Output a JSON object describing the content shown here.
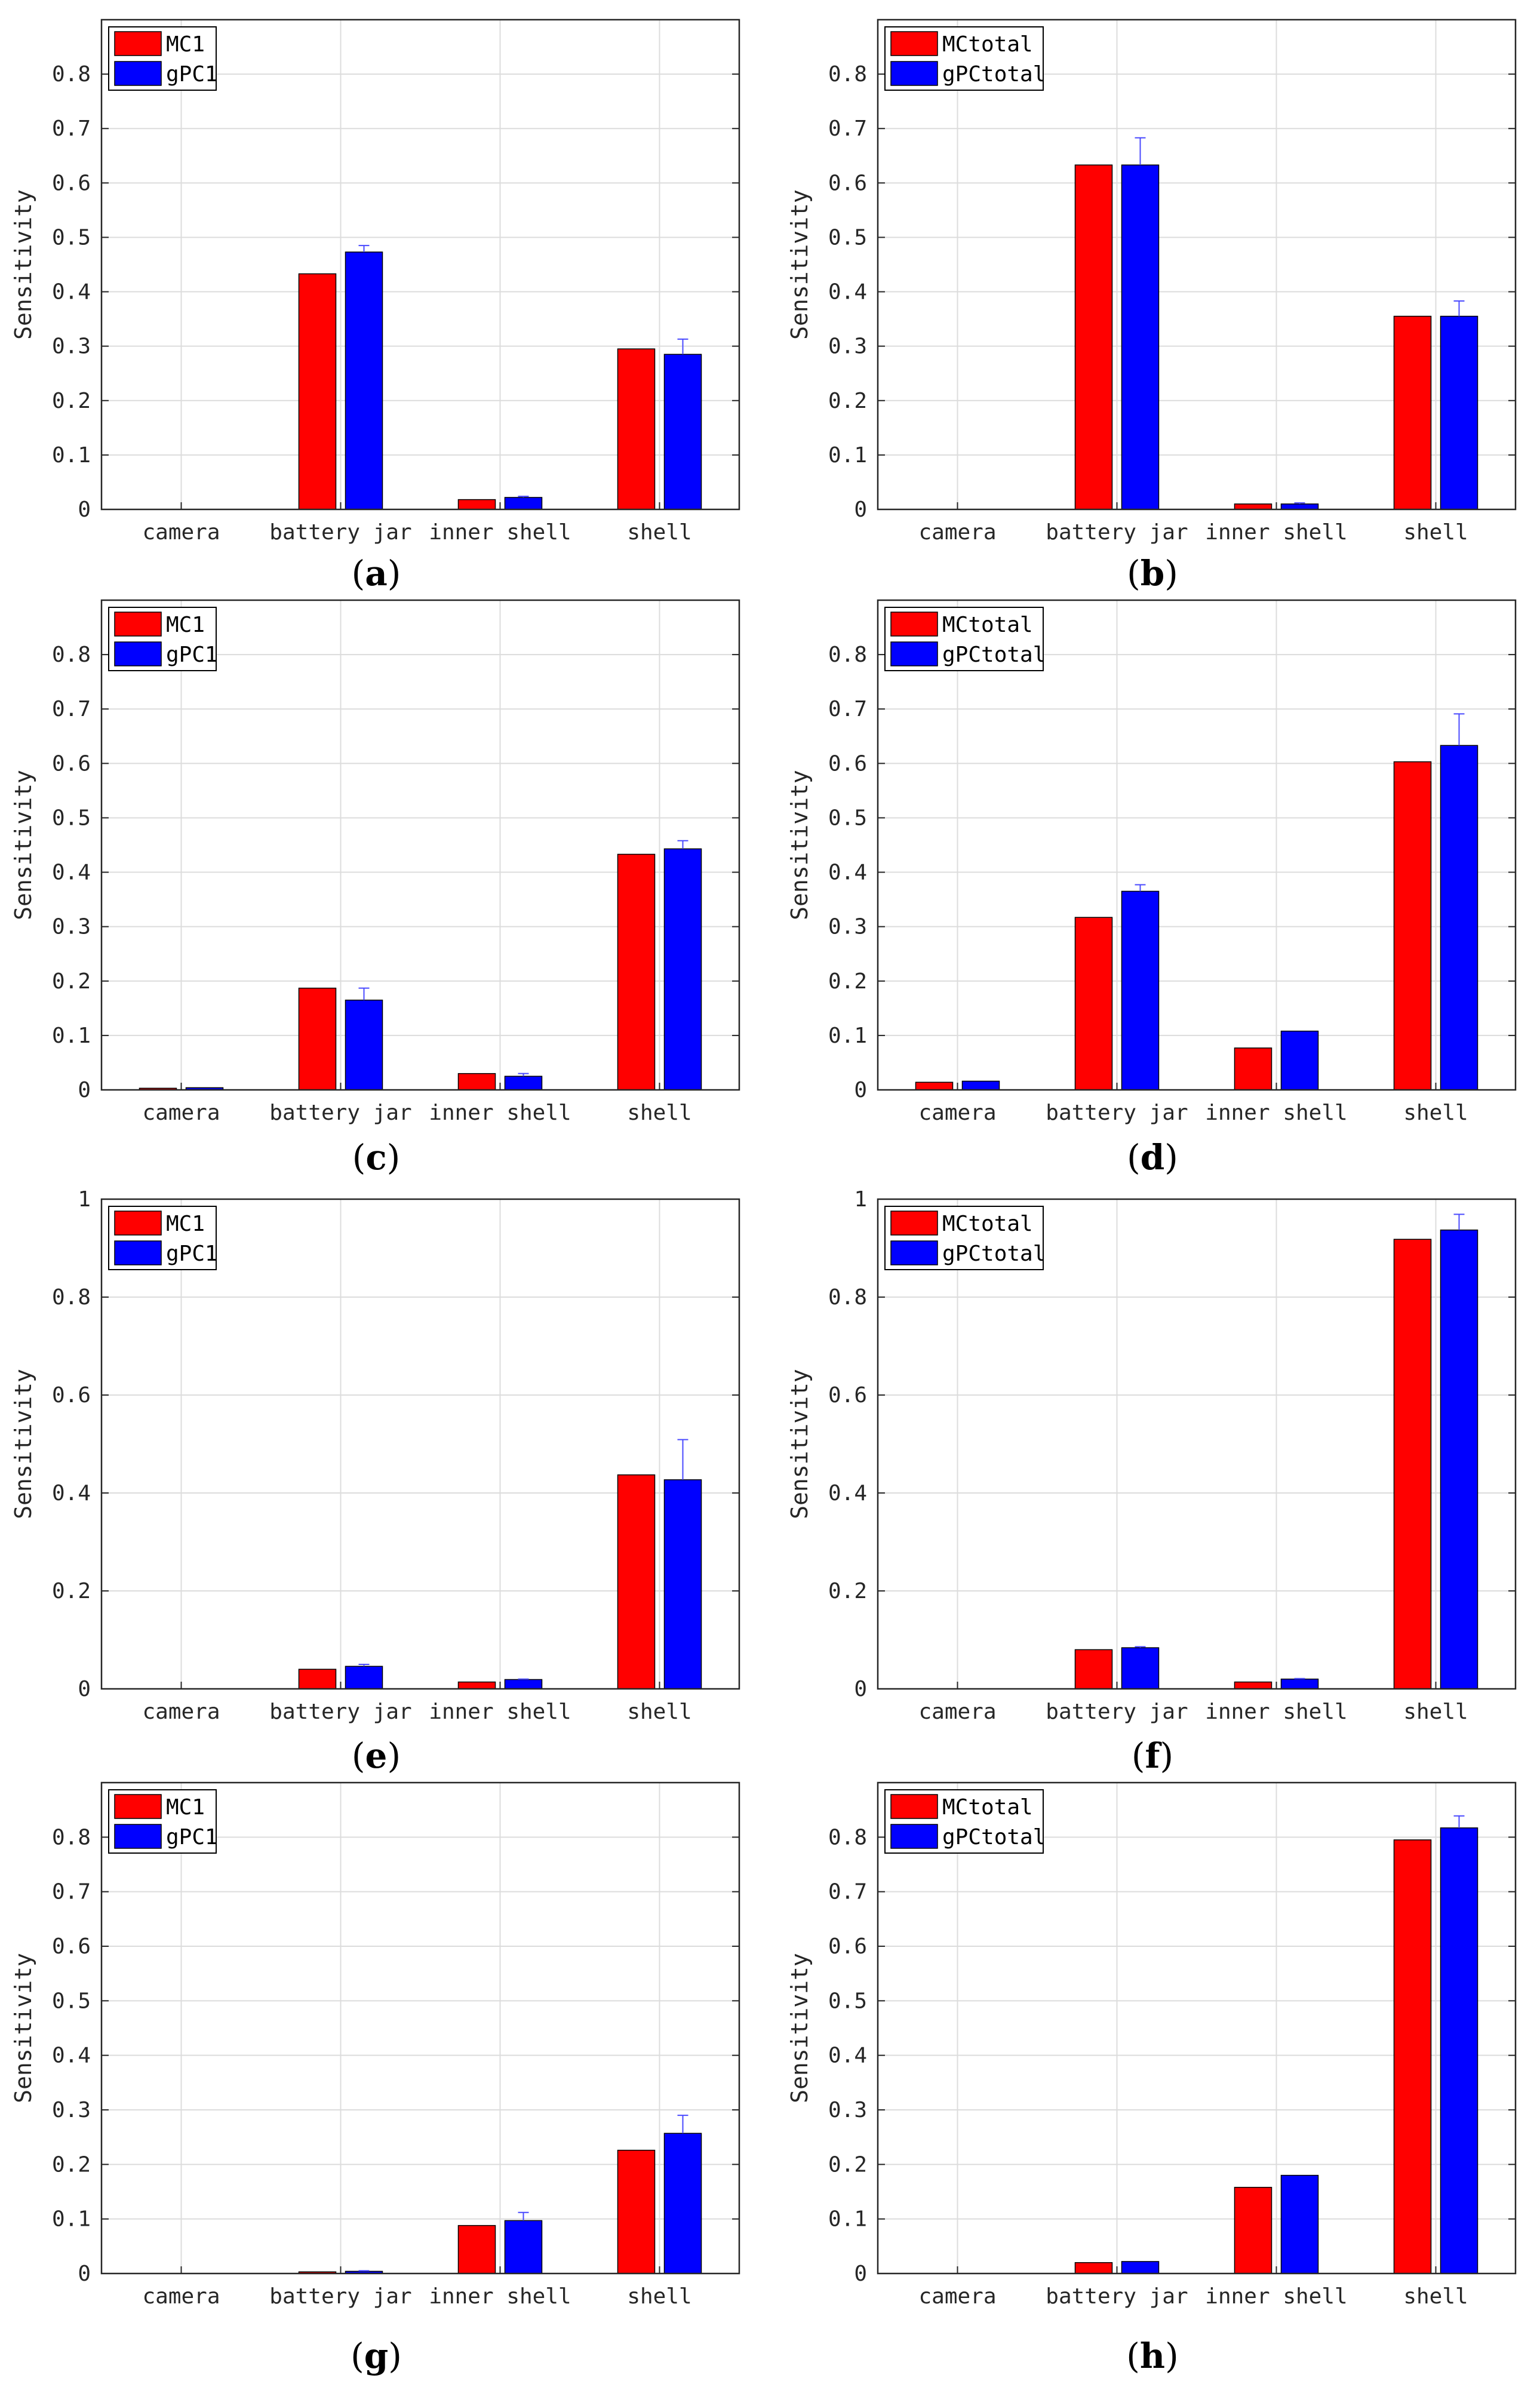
{
  "colors": {
    "mc": "#ff0000",
    "gpc": "#0000ff",
    "grid": "#dcdcdc",
    "axis": "#262626",
    "errorbar": "#4a4aff"
  },
  "chart_data": [
    {
      "panel": "a",
      "type": "bar",
      "ylabel": "Sensitivity",
      "ylim": [
        0,
        0.9
      ],
      "yticks": [
        0,
        0.1,
        0.2,
        0.3,
        0.4,
        0.5,
        0.6,
        0.7,
        0.8
      ],
      "ytick_labels": [
        "0",
        "0.1",
        "0.2",
        "0.3",
        "0.4",
        "0.5",
        "0.6",
        "0.7",
        "0.8"
      ],
      "categories": [
        "camera",
        "battery jar",
        "inner shell",
        "shell"
      ],
      "series": [
        {
          "name": "MC1",
          "values": [
            0,
            0.433,
            0.018,
            0.295
          ]
        },
        {
          "name": "gPC1",
          "values": [
            0,
            0.473,
            0.022,
            0.285
          ],
          "errors": [
            0,
            0.012,
            0.002,
            0.028
          ]
        }
      ],
      "legend_loc": "top-left",
      "grid": true
    },
    {
      "panel": "b",
      "type": "bar",
      "ylabel": "Sensitivity",
      "ylim": [
        0,
        0.9
      ],
      "yticks": [
        0,
        0.1,
        0.2,
        0.3,
        0.4,
        0.5,
        0.6,
        0.7,
        0.8
      ],
      "ytick_labels": [
        "0",
        "0.1",
        "0.2",
        "0.3",
        "0.4",
        "0.5",
        "0.6",
        "0.7",
        "0.8"
      ],
      "categories": [
        "camera",
        "battery jar",
        "inner shell",
        "shell"
      ],
      "series": [
        {
          "name": "MCtotal",
          "values": [
            0,
            0.633,
            0.01,
            0.355
          ]
        },
        {
          "name": "gPCtotal",
          "values": [
            0,
            0.633,
            0.01,
            0.355
          ],
          "errors": [
            0,
            0.05,
            0.002,
            0.028
          ]
        }
      ],
      "legend_loc": "top-left",
      "grid": true
    },
    {
      "panel": "c",
      "type": "bar",
      "ylabel": "Sensitivity",
      "ylim": [
        0,
        0.9
      ],
      "yticks": [
        0,
        0.1,
        0.2,
        0.3,
        0.4,
        0.5,
        0.6,
        0.7,
        0.8
      ],
      "ytick_labels": [
        "0",
        "0.1",
        "0.2",
        "0.3",
        "0.4",
        "0.5",
        "0.6",
        "0.7",
        "0.8"
      ],
      "categories": [
        "camera",
        "battery jar",
        "inner shell",
        "shell"
      ],
      "series": [
        {
          "name": "MC1",
          "values": [
            0.003,
            0.187,
            0.03,
            0.433
          ]
        },
        {
          "name": "gPC1",
          "values": [
            0.004,
            0.165,
            0.025,
            0.443
          ],
          "errors": [
            0,
            0.022,
            0.005,
            0.015
          ]
        }
      ],
      "legend_loc": "top-left",
      "grid": true
    },
    {
      "panel": "d",
      "type": "bar",
      "ylabel": "Sensitivity",
      "ylim": [
        0,
        0.9
      ],
      "yticks": [
        0,
        0.1,
        0.2,
        0.3,
        0.4,
        0.5,
        0.6,
        0.7,
        0.8
      ],
      "ytick_labels": [
        "0",
        "0.1",
        "0.2",
        "0.3",
        "0.4",
        "0.5",
        "0.6",
        "0.7",
        "0.8"
      ],
      "categories": [
        "camera",
        "battery jar",
        "inner shell",
        "shell"
      ],
      "series": [
        {
          "name": "MCtotal",
          "values": [
            0.014,
            0.317,
            0.077,
            0.603
          ]
        },
        {
          "name": "gPCtotal",
          "values": [
            0.016,
            0.365,
            0.108,
            0.633
          ],
          "errors": [
            0,
            0.012,
            0,
            0.058
          ]
        }
      ],
      "legend_loc": "top-left",
      "grid": true
    },
    {
      "panel": "e",
      "type": "bar",
      "ylabel": "Sensitivity",
      "ylim": [
        0,
        1
      ],
      "yticks": [
        0,
        0.2,
        0.4,
        0.6,
        0.8,
        1
      ],
      "ytick_labels": [
        "0",
        "0.2",
        "0.4",
        "0.6",
        "0.8",
        "1"
      ],
      "categories": [
        "camera",
        "battery jar",
        "inner shell",
        "shell"
      ],
      "series": [
        {
          "name": "MC1",
          "values": [
            0,
            0.04,
            0.014,
            0.437
          ]
        },
        {
          "name": "gPC1",
          "values": [
            0,
            0.046,
            0.019,
            0.427
          ],
          "errors": [
            0,
            0.004,
            0.001,
            0.082
          ]
        }
      ],
      "legend_loc": "top-left",
      "grid": true
    },
    {
      "panel": "f",
      "type": "bar",
      "ylabel": "Sensitivity",
      "ylim": [
        0,
        1
      ],
      "yticks": [
        0,
        0.2,
        0.4,
        0.6,
        0.8,
        1
      ],
      "ytick_labels": [
        "0",
        "0.2",
        "0.4",
        "0.6",
        "0.8",
        "1"
      ],
      "categories": [
        "camera",
        "battery jar",
        "inner shell",
        "shell"
      ],
      "series": [
        {
          "name": "MCtotal",
          "values": [
            0,
            0.08,
            0.014,
            0.918
          ]
        },
        {
          "name": "gPCtotal",
          "values": [
            0,
            0.084,
            0.02,
            0.937
          ],
          "errors": [
            0,
            0.002,
            0.001,
            0.032
          ]
        }
      ],
      "legend_loc": "top-left",
      "grid": true
    },
    {
      "panel": "g",
      "type": "bar",
      "ylabel": "Sensitivity",
      "ylim": [
        0,
        0.9
      ],
      "yticks": [
        0,
        0.1,
        0.2,
        0.3,
        0.4,
        0.5,
        0.6,
        0.7,
        0.8
      ],
      "ytick_labels": [
        "0",
        "0.1",
        "0.2",
        "0.3",
        "0.4",
        "0.5",
        "0.6",
        "0.7",
        "0.8"
      ],
      "categories": [
        "camera",
        "battery jar",
        "inner shell",
        "shell"
      ],
      "series": [
        {
          "name": "MC1",
          "values": [
            0,
            0.003,
            0.088,
            0.226
          ]
        },
        {
          "name": "gPC1",
          "values": [
            0,
            0.004,
            0.097,
            0.257
          ],
          "errors": [
            0,
            0.001,
            0.015,
            0.033
          ]
        }
      ],
      "legend_loc": "top-left",
      "grid": true
    },
    {
      "panel": "h",
      "type": "bar",
      "ylabel": "Sensitivity",
      "ylim": [
        0,
        0.9
      ],
      "yticks": [
        0,
        0.1,
        0.2,
        0.3,
        0.4,
        0.5,
        0.6,
        0.7,
        0.8
      ],
      "ytick_labels": [
        "0",
        "0.1",
        "0.2",
        "0.3",
        "0.4",
        "0.5",
        "0.6",
        "0.7",
        "0.8"
      ],
      "categories": [
        "camera",
        "battery jar",
        "inner shell",
        "shell"
      ],
      "series": [
        {
          "name": "MCtotal",
          "values": [
            0,
            0.02,
            0.158,
            0.795
          ]
        },
        {
          "name": "gPCtotal",
          "values": [
            0,
            0.022,
            0.18,
            0.817
          ],
          "errors": [
            0,
            0,
            0,
            0.022
          ]
        }
      ],
      "legend_loc": "top-left",
      "grid": true
    }
  ],
  "captions": [
    {
      "open": "(",
      "letter": "a",
      "close": ")"
    },
    {
      "open": "(",
      "letter": "b",
      "close": ")"
    },
    {
      "open": "(",
      "letter": "c",
      "close": ")"
    },
    {
      "open": "(",
      "letter": "d",
      "close": ")"
    },
    {
      "open": "(",
      "letter": "e",
      "close": ")"
    },
    {
      "open": "(",
      "letter": "f",
      "close": ")"
    },
    {
      "open": "(",
      "letter": "g",
      "close": ")"
    },
    {
      "open": "(",
      "letter": "h",
      "close": ")"
    }
  ]
}
